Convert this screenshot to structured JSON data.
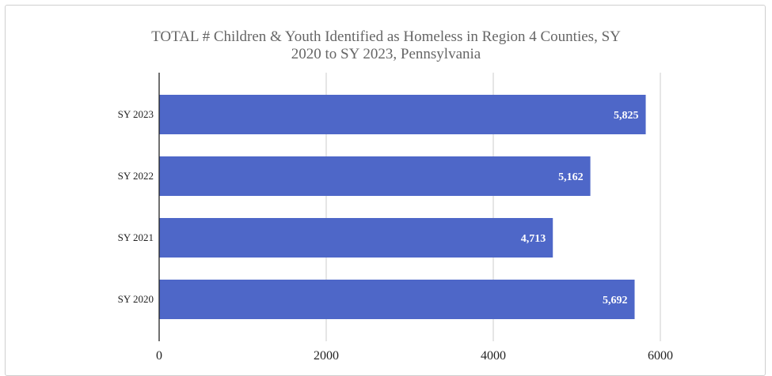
{
  "chart_data": {
    "type": "bar",
    "orientation": "horizontal",
    "title_line1": "TOTAL # Children & Youth Identified as Homeless in Region 4 Counties, SY",
    "title_line2": "2020 to SY 2023, Pennsylvania",
    "categories": [
      "SY 2023",
      "SY 2022",
      "SY 2021",
      "SY 2020"
    ],
    "values": [
      5825,
      5162,
      4713,
      5692
    ],
    "data_labels": [
      "5,825",
      "5,162",
      "4,713",
      "5,692"
    ],
    "xlim": [
      0,
      6000
    ],
    "x_ticks": [
      0,
      2000,
      4000,
      6000
    ],
    "x_tick_labels": [
      "0",
      "2000",
      "4000",
      "6000"
    ],
    "grid": true,
    "bar_color": "#4E67C8",
    "grid_color": "#cccccc"
  }
}
